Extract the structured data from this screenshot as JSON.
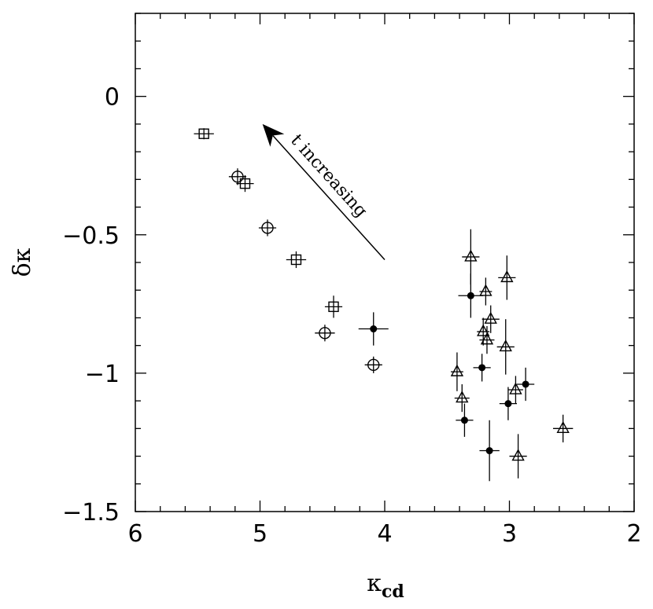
{
  "chart_data": {
    "type": "scatter",
    "title": "",
    "xlabel_main": "κ",
    "xlabel_sub": "cd",
    "ylabel": "δκ",
    "xlim": [
      6,
      2
    ],
    "ylim": [
      -1.5,
      0.3
    ],
    "grid": false,
    "x_ticks": [
      "6",
      "5",
      "4",
      "3",
      "2"
    ],
    "y_ticks": [
      "0",
      "−0.5",
      "−1",
      "−1.5"
    ],
    "annotation": {
      "text": "t increasing",
      "arrow_from": [
        4.0,
        -0.59
      ],
      "arrow_to": [
        4.98,
        -0.1
      ]
    },
    "series": [
      {
        "marker": "square",
        "points": [
          {
            "x": 5.45,
            "y": -0.135,
            "xerr": 0.08,
            "yerr": 0.02
          },
          {
            "x": 5.12,
            "y": -0.315,
            "xerr": 0.07,
            "yerr": 0.03
          },
          {
            "x": 4.71,
            "y": -0.59,
            "xerr": 0.08,
            "yerr": 0.03
          },
          {
            "x": 4.41,
            "y": -0.76,
            "xerr": 0.07,
            "yerr": 0.04
          }
        ]
      },
      {
        "marker": "circle",
        "points": [
          {
            "x": 5.18,
            "y": -0.29,
            "xerr": 0.07,
            "yerr": 0.03
          },
          {
            "x": 4.94,
            "y": -0.475,
            "xerr": 0.07,
            "yerr": 0.03
          },
          {
            "x": 4.48,
            "y": -0.855,
            "xerr": 0.08,
            "yerr": 0.03
          },
          {
            "x": 4.09,
            "y": -0.97,
            "xerr": 0.07,
            "yerr": 0.03
          }
        ]
      },
      {
        "marker": "filled",
        "points": [
          {
            "x": 4.09,
            "y": -0.84,
            "xerr": 0.12,
            "yerr": 0.06
          },
          {
            "x": 3.31,
            "y": -0.72,
            "xerr": 0.1,
            "yerr": 0.08
          },
          {
            "x": 3.22,
            "y": -0.98,
            "xerr": 0.07,
            "yerr": 0.05
          },
          {
            "x": 3.36,
            "y": -1.17,
            "xerr": 0.07,
            "yerr": 0.06
          },
          {
            "x": 3.01,
            "y": -1.11,
            "xerr": 0.07,
            "yerr": 0.06
          },
          {
            "x": 2.87,
            "y": -1.04,
            "xerr": 0.07,
            "yerr": 0.06
          },
          {
            "x": 3.16,
            "y": -1.28,
            "xerr": 0.08,
            "yerr": 0.11
          }
        ]
      },
      {
        "marker": "triangle",
        "points": [
          {
            "x": 3.31,
            "y": -0.58,
            "xerr": 0.07,
            "yerr": 0.1
          },
          {
            "x": 3.19,
            "y": -0.705,
            "xerr": 0.05,
            "yerr": 0.05
          },
          {
            "x": 3.02,
            "y": -0.655,
            "xerr": 0.07,
            "yerr": 0.08
          },
          {
            "x": 3.15,
            "y": -0.805,
            "xerr": 0.07,
            "yerr": 0.05
          },
          {
            "x": 3.21,
            "y": -0.85,
            "xerr": 0.05,
            "yerr": 0.05
          },
          {
            "x": 3.18,
            "y": -0.88,
            "xerr": 0.06,
            "yerr": 0.05
          },
          {
            "x": 3.03,
            "y": -0.905,
            "xerr": 0.07,
            "yerr": 0.1
          },
          {
            "x": 3.42,
            "y": -0.995,
            "xerr": 0.05,
            "yerr": 0.07
          },
          {
            "x": 3.38,
            "y": -1.09,
            "xerr": 0.06,
            "yerr": 0.05
          },
          {
            "x": 2.95,
            "y": -1.06,
            "xerr": 0.06,
            "yerr": 0.05
          },
          {
            "x": 2.57,
            "y": -1.2,
            "xerr": 0.08,
            "yerr": 0.05
          },
          {
            "x": 2.93,
            "y": -1.3,
            "xerr": 0.07,
            "yerr": 0.08
          }
        ]
      }
    ]
  }
}
